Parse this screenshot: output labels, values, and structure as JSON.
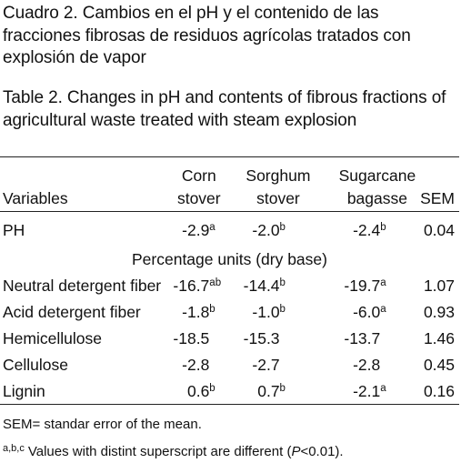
{
  "caption": {
    "spanish": "Cuadro 2. Cambios en el pH y el contenido de las fracciones fibrosas de residuos agrícolas tratados con explosión de vapor",
    "english": "Table 2. Changes in pH and contents of fibrous fractions of agricultural waste treated with steam explosion"
  },
  "table": {
    "headers": {
      "variables": "Variables",
      "corn_1": "Corn",
      "corn_2": "stover",
      "sorghum_1": "Sorghum",
      "sorghum_2": "stover",
      "sugarcane_1": "Sugarcane",
      "sugarcane_2": "bagasse",
      "sem": "SEM"
    },
    "section_label": "Percentage units (dry base)",
    "rows": [
      {
        "variable": "PH",
        "corn": "-2.9",
        "corn_sup": "a",
        "sorghum": "-2.0",
        "sorghum_sup": "b",
        "sugarcane": "-2.4",
        "sugarcane_sup": "b",
        "sem": "0.04"
      },
      {
        "variable": "Neutral detergent fiber",
        "corn": "-16.7",
        "corn_sup": "ab",
        "sorghum": "-14.4",
        "sorghum_sup": "b",
        "sugarcane": "-19.7",
        "sugarcane_sup": "a",
        "sem": "1.07"
      },
      {
        "variable": "Acid detergent fiber",
        "corn": "-1.8",
        "corn_sup": "b",
        "sorghum": "-1.0",
        "sorghum_sup": "b",
        "sugarcane": "-6.0",
        "sugarcane_sup": "a",
        "sem": "0.93"
      },
      {
        "variable": "Hemicellulose",
        "corn": "-18.5",
        "corn_sup": "",
        "sorghum": "-15.3",
        "sorghum_sup": "",
        "sugarcane": "-13.7",
        "sugarcane_sup": "",
        "sem": "1.46"
      },
      {
        "variable": "Cellulose",
        "corn": "-2.8",
        "corn_sup": "",
        "sorghum": "-2.7",
        "sorghum_sup": "",
        "sugarcane": "-2.8",
        "sugarcane_sup": "",
        "sem": "0.45"
      },
      {
        "variable": "Lignin",
        "corn": "0.6",
        "corn_sup": "b",
        "sorghum": "0.7",
        "sorghum_sup": "b",
        "sugarcane": "-2.1",
        "sugarcane_sup": "a",
        "sem": "0.16"
      }
    ]
  },
  "footnotes": {
    "sem_note": "SEM= standar error of the mean.",
    "sup_marks": "a,b,c",
    "sig_note_before": "Values with distint superscript are different (",
    "p_symbol": "P",
    "sig_note_after": "<0.01)."
  }
}
